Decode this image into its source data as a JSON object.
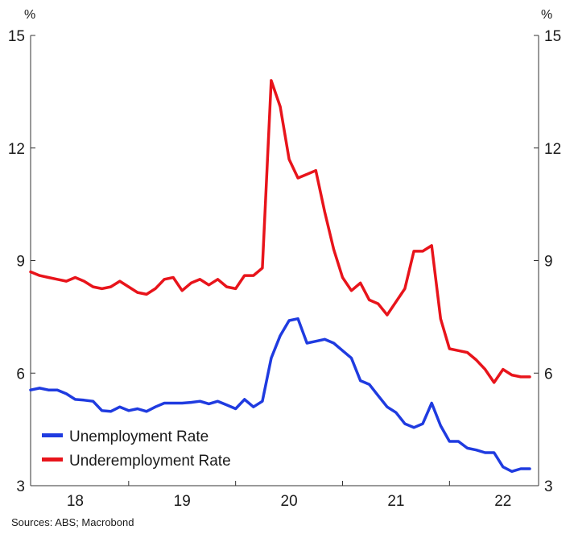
{
  "chart_data": {
    "type": "line",
    "source": "Sources: ABS; Macrobond",
    "y_unit_left": "%",
    "y_unit_right": "%",
    "ylim": [
      3,
      15
    ],
    "yticks": [
      "3",
      "6",
      "9",
      "12",
      "15"
    ],
    "xlim": [
      2017.583,
      2022.333
    ],
    "xticks": [
      {
        "label": "18",
        "value": 2018.0
      },
      {
        "label": "19",
        "value": 2019.0
      },
      {
        "label": "20",
        "value": 2020.0
      },
      {
        "label": "21",
        "value": 2021.0
      },
      {
        "label": "22",
        "value": 2022.0
      }
    ],
    "x_boundaries": [
      2018.5,
      2019.5,
      2020.5,
      2021.5
    ],
    "grid": false,
    "legend_position": "bottom-left",
    "series": [
      {
        "name": "Unemployment Rate",
        "color": "#1f3be0",
        "x": [
          2017.583,
          2017.667,
          2017.75,
          2017.833,
          2017.917,
          2018.0,
          2018.083,
          2018.167,
          2018.25,
          2018.333,
          2018.417,
          2018.5,
          2018.583,
          2018.667,
          2018.75,
          2018.833,
          2018.917,
          2019.0,
          2019.083,
          2019.167,
          2019.25,
          2019.333,
          2019.417,
          2019.5,
          2019.583,
          2019.667,
          2019.75,
          2019.833,
          2019.917,
          2020.0,
          2020.083,
          2020.167,
          2020.25,
          2020.333,
          2020.417,
          2020.5,
          2020.583,
          2020.667,
          2020.75,
          2020.833,
          2020.917,
          2021.0,
          2021.083,
          2021.167,
          2021.25,
          2021.333,
          2021.417,
          2021.5,
          2021.583,
          2021.667,
          2021.75,
          2021.833,
          2021.917,
          2022.0,
          2022.083,
          2022.167,
          2022.25
        ],
        "values": [
          5.55,
          5.6,
          5.55,
          5.55,
          5.45,
          5.3,
          5.28,
          5.25,
          5.0,
          4.98,
          5.1,
          5.0,
          5.05,
          4.98,
          5.1,
          5.2,
          5.2,
          5.2,
          5.22,
          5.25,
          5.18,
          5.25,
          5.15,
          5.05,
          5.3,
          5.1,
          5.25,
          6.4,
          7.0,
          7.4,
          7.45,
          6.8,
          6.85,
          6.9,
          6.8,
          6.6,
          6.4,
          5.8,
          5.7,
          5.4,
          5.1,
          4.95,
          4.65,
          4.55,
          4.65,
          5.2,
          4.6,
          4.18,
          4.18,
          4.0,
          3.95,
          3.88,
          3.88,
          3.5,
          3.38,
          3.45,
          3.45
        ]
      },
      {
        "name": "Underemployment Rate",
        "color": "#e8141b",
        "x": [
          2017.583,
          2017.667,
          2017.75,
          2017.833,
          2017.917,
          2018.0,
          2018.083,
          2018.167,
          2018.25,
          2018.333,
          2018.417,
          2018.5,
          2018.583,
          2018.667,
          2018.75,
          2018.833,
          2018.917,
          2019.0,
          2019.083,
          2019.167,
          2019.25,
          2019.333,
          2019.417,
          2019.5,
          2019.583,
          2019.667,
          2019.75,
          2019.833,
          2019.917,
          2020.0,
          2020.083,
          2020.167,
          2020.25,
          2020.333,
          2020.417,
          2020.5,
          2020.583,
          2020.667,
          2020.75,
          2020.833,
          2020.917,
          2021.0,
          2021.083,
          2021.167,
          2021.25,
          2021.333,
          2021.417,
          2021.5,
          2021.583,
          2021.667,
          2021.75,
          2021.833,
          2021.917,
          2022.0,
          2022.083,
          2022.167,
          2022.25
        ],
        "values": [
          8.7,
          8.6,
          8.55,
          8.5,
          8.45,
          8.55,
          8.45,
          8.3,
          8.25,
          8.3,
          8.45,
          8.3,
          8.15,
          8.1,
          8.25,
          8.5,
          8.55,
          8.2,
          8.4,
          8.5,
          8.35,
          8.5,
          8.3,
          8.25,
          8.6,
          8.6,
          8.8,
          13.8,
          13.1,
          11.7,
          11.2,
          11.3,
          11.4,
          10.3,
          9.3,
          8.55,
          8.2,
          8.4,
          7.95,
          7.85,
          7.55,
          7.9,
          8.25,
          9.25,
          9.25,
          9.4,
          7.45,
          6.65,
          6.6,
          6.55,
          6.35,
          6.1,
          5.75,
          6.1,
          5.95,
          5.9,
          5.9
        ]
      }
    ]
  }
}
